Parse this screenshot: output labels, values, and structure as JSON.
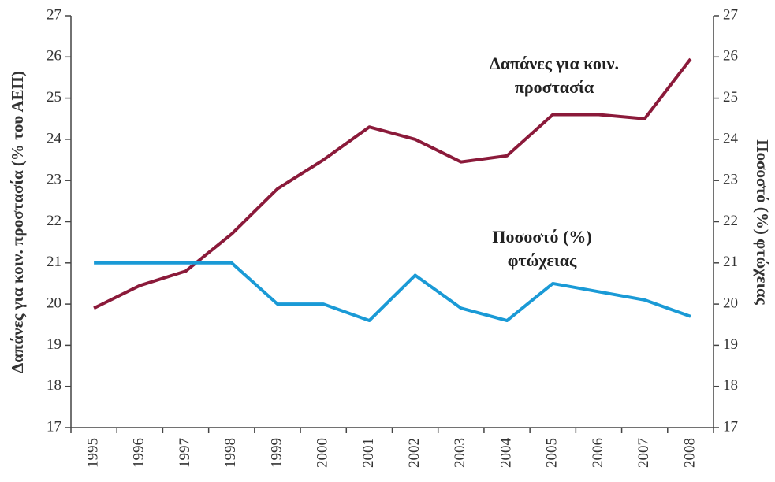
{
  "chart_data": {
    "type": "line",
    "y_label": "Δαπάνες για κοιν. προστασία (% του ΑΕΠ)",
    "y2_label": "Ποσοστό (%) φτώχειας",
    "categories": [
      "1995",
      "1996",
      "1997",
      "1998",
      "1999",
      "2000",
      "2001",
      "2002",
      "2003",
      "2004",
      "2005",
      "2006",
      "2007",
      "2008"
    ],
    "series": [
      {
        "name": "Δαπάνες για κοιν. προστασία",
        "color": "#8b1a3a",
        "values": [
          19.9,
          20.45,
          20.8,
          21.7,
          22.8,
          23.5,
          24.3,
          24.0,
          23.45,
          23.6,
          24.6,
          24.6,
          24.5,
          25.95
        ]
      },
      {
        "name": "Ποσοστό (%) φτώχειας",
        "color": "#1a9ad6",
        "axis": "y2",
        "values": [
          21,
          21,
          21,
          21,
          20.0,
          20.0,
          19.6,
          20.7,
          19.9,
          19.6,
          20.5,
          20.3,
          20.1,
          19.7
        ]
      }
    ],
    "ylim": [
      17,
      27
    ],
    "yticks": [
      17,
      18,
      19,
      20,
      21,
      22,
      23,
      24,
      25,
      26,
      27
    ],
    "y2lim": [
      17,
      27
    ],
    "y2ticks": [
      17,
      18,
      19,
      20,
      21,
      22,
      23,
      24,
      25,
      26,
      27
    ],
    "grid": false
  }
}
